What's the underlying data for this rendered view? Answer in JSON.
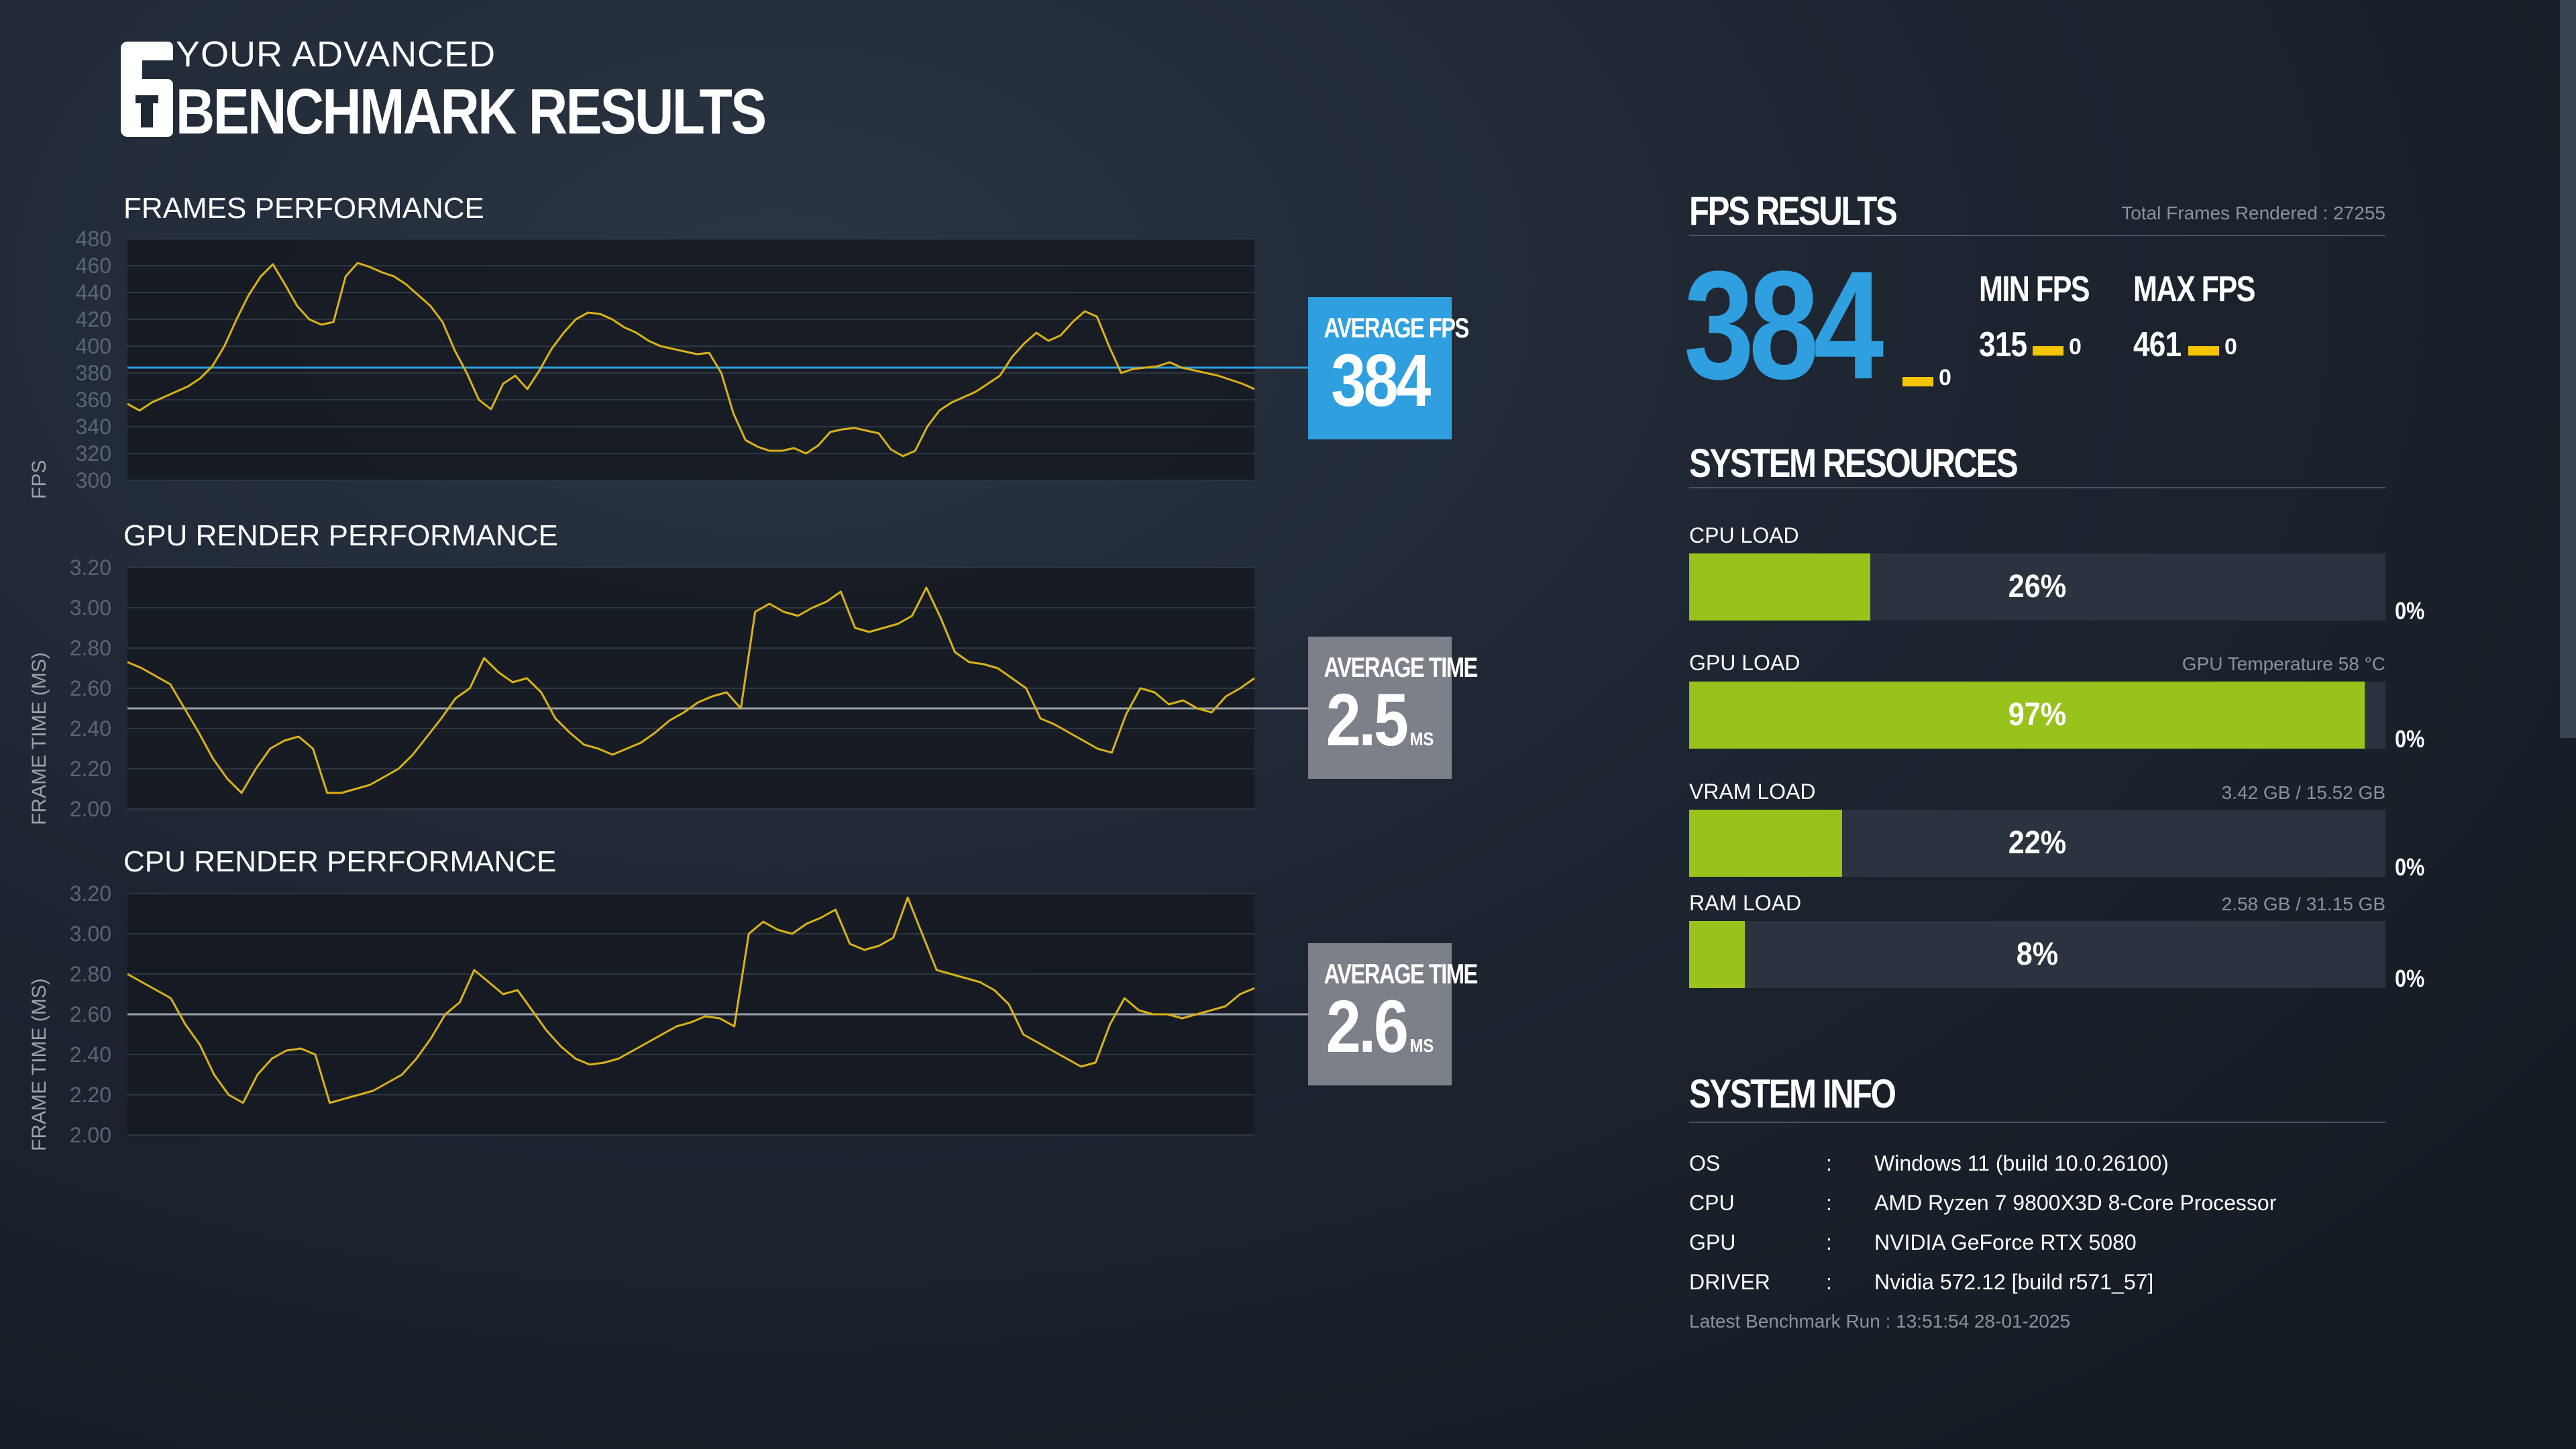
{
  "header": {
    "subtitle": "YOUR ADVANCED",
    "title": "BENCHMARK RESULTS"
  },
  "frames": {
    "title": "FRAMES PERFORMANCE",
    "yaxis_title": "FPS",
    "y_ticks": [
      "480",
      "460",
      "440",
      "420",
      "400",
      "380",
      "360",
      "340",
      "320",
      "300"
    ],
    "average_label": "AVERAGE FPS",
    "average_value": "384"
  },
  "gpu_perf": {
    "title": "GPU RENDER PERFORMANCE",
    "yaxis_title": "FRAME TIME (MS)",
    "y_ticks": [
      "3.20",
      "3.00",
      "2.80",
      "2.60",
      "2.40",
      "2.20",
      "2.00"
    ],
    "average_label": "AVERAGE TIME",
    "average_value": "2.5",
    "average_unit": "MS"
  },
  "cpu_perf": {
    "title": "CPU RENDER PERFORMANCE",
    "yaxis_title": "FRAME TIME (MS)",
    "y_ticks": [
      "3.20",
      "3.00",
      "2.80",
      "2.60",
      "2.40",
      "2.20",
      "2.00"
    ],
    "average_label": "AVERAGE TIME",
    "average_value": "2.6",
    "average_unit": "MS"
  },
  "fps_results": {
    "title": "FPS RESULTS",
    "total_frames": "Total Frames Rendered : 27255",
    "avg": "384",
    "avg_zero": "0",
    "min_title": "MIN FPS",
    "min_value": "315",
    "min_zero": "0",
    "max_title": "MAX FPS",
    "max_value": "461",
    "max_zero": "0"
  },
  "system_resources": {
    "title": "SYSTEM RESOURCES",
    "bars": [
      {
        "label": "CPU LOAD",
        "extra": "",
        "percent": 26,
        "text": "26%",
        "zero": "0%"
      },
      {
        "label": "GPU LOAD",
        "extra": "GPU Temperature 58 °C",
        "percent": 97,
        "text": "97%",
        "zero": "0%"
      },
      {
        "label": "VRAM LOAD",
        "extra": "3.42 GB / 15.52 GB",
        "percent": 22,
        "text": "22%",
        "zero": "0%"
      },
      {
        "label": "RAM LOAD",
        "extra": "2.58 GB / 31.15 GB",
        "percent": 8,
        "text": "8%",
        "zero": "0%"
      }
    ]
  },
  "system_info": {
    "title": "SYSTEM INFO",
    "rows": [
      {
        "key": "OS",
        "sep": ":",
        "value": "Windows 11 (build 10.0.26100)"
      },
      {
        "key": "CPU",
        "sep": ":",
        "value": "AMD Ryzen 7 9800X3D 8-Core Processor"
      },
      {
        "key": "GPU",
        "sep": ":",
        "value": "NVIDIA GeForce RTX 5080"
      },
      {
        "key": "DRIVER",
        "sep": ":",
        "value": "Nvidia 572.12 [build r571_57]"
      }
    ],
    "latest_run": "Latest Benchmark Run : 13:51:54 28-01-2025"
  },
  "colors": {
    "accent_blue": "#2f9fe0",
    "line_yellow": "#d9b21a",
    "bar_green": "#99c21d",
    "avg_grey": "#7c8088",
    "dash_yellow": "#f4c400"
  },
  "chart_data": [
    {
      "type": "line",
      "title": "FRAMES PERFORMANCE",
      "ylabel": "FPS",
      "ylim": [
        300,
        480
      ],
      "average": 384,
      "series": [
        {
          "values": [
            357,
            352,
            358,
            362,
            366,
            370,
            376,
            385,
            400,
            420,
            438,
            452,
            461,
            446,
            430,
            420,
            416,
            418,
            452,
            462,
            459,
            455,
            452,
            446,
            438,
            430,
            418,
            397,
            380,
            360,
            353,
            372,
            378,
            368,
            382,
            398,
            410,
            420,
            425,
            424,
            420,
            414,
            410,
            404,
            400,
            398,
            396,
            394,
            395,
            380,
            350,
            330,
            325,
            322,
            322,
            324,
            320,
            326,
            336,
            338,
            339,
            337,
            335,
            323,
            318,
            322,
            340,
            352,
            358,
            362,
            366,
            372,
            378,
            392,
            402,
            410,
            404,
            408,
            418,
            426,
            422,
            400,
            380,
            383,
            384,
            385,
            388,
            384,
            382,
            380,
            378,
            375,
            372,
            368
          ]
        }
      ]
    },
    {
      "type": "line",
      "title": "GPU RENDER PERFORMANCE",
      "ylabel": "FRAME TIME (MS)",
      "ylim": [
        2.0,
        3.2
      ],
      "average": 2.5,
      "series": [
        {
          "values": [
            2.73,
            2.7,
            2.66,
            2.62,
            2.5,
            2.38,
            2.25,
            2.15,
            2.08,
            2.2,
            2.3,
            2.34,
            2.36,
            2.3,
            2.08,
            2.08,
            2.1,
            2.12,
            2.16,
            2.2,
            2.27,
            2.36,
            2.45,
            2.55,
            2.6,
            2.75,
            2.68,
            2.63,
            2.65,
            2.58,
            2.45,
            2.38,
            2.32,
            2.3,
            2.27,
            2.3,
            2.33,
            2.38,
            2.44,
            2.48,
            2.53,
            2.56,
            2.58,
            2.5,
            2.98,
            3.02,
            2.98,
            2.96,
            3.0,
            3.03,
            3.08,
            2.9,
            2.88,
            2.9,
            2.92,
            2.96,
            3.1,
            2.95,
            2.78,
            2.73,
            2.72,
            2.7,
            2.65,
            2.6,
            2.45,
            2.42,
            2.38,
            2.34,
            2.3,
            2.28,
            2.47,
            2.6,
            2.58,
            2.52,
            2.54,
            2.5,
            2.48,
            2.56,
            2.6,
            2.65
          ]
        }
      ]
    },
    {
      "type": "line",
      "title": "CPU RENDER PERFORMANCE",
      "ylabel": "FRAME TIME (MS)",
      "ylim": [
        2.0,
        3.2
      ],
      "average": 2.6,
      "series": [
        {
          "values": [
            2.8,
            2.76,
            2.72,
            2.68,
            2.55,
            2.45,
            2.3,
            2.2,
            2.16,
            2.3,
            2.38,
            2.42,
            2.43,
            2.4,
            2.16,
            2.18,
            2.2,
            2.22,
            2.26,
            2.3,
            2.38,
            2.48,
            2.6,
            2.66,
            2.82,
            2.76,
            2.7,
            2.72,
            2.62,
            2.52,
            2.44,
            2.38,
            2.35,
            2.36,
            2.38,
            2.42,
            2.46,
            2.5,
            2.54,
            2.56,
            2.59,
            2.58,
            2.54,
            3.0,
            3.06,
            3.02,
            3.0,
            3.05,
            3.08,
            3.12,
            2.95,
            2.92,
            2.94,
            2.98,
            3.18,
            3.0,
            2.82,
            2.8,
            2.78,
            2.76,
            2.72,
            2.65,
            2.5,
            2.46,
            2.42,
            2.38,
            2.34,
            2.36,
            2.55,
            2.68,
            2.62,
            2.6,
            2.6,
            2.58,
            2.6,
            2.62,
            2.64,
            2.7,
            2.73
          ]
        }
      ]
    }
  ]
}
